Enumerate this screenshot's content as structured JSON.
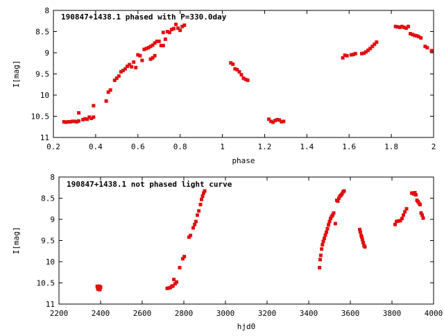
{
  "chart_data": [
    {
      "type": "scatter",
      "title": "190847+1438.1 phased with P=330.0day",
      "xlabel": "phase",
      "ylabel": "I[mag]",
      "xlim": [
        0.2,
        2.0
      ],
      "ylim": [
        8,
        11
      ],
      "y_inverted": true,
      "xticks": [
        "0.2",
        "0.4",
        "0.6",
        "0.8",
        "1",
        "1.2",
        "1.4",
        "1.6",
        "1.8",
        "2"
      ],
      "xtick_values": [
        0.2,
        0.4,
        0.6,
        0.8,
        1.0,
        1.2,
        1.4,
        1.6,
        1.8,
        2.0
      ],
      "yticks": [
        "8",
        "8.5",
        "9",
        "9.5",
        "10",
        "10.5",
        "11"
      ],
      "ytick_values": [
        8,
        8.5,
        9,
        9.5,
        10,
        10.5,
        11
      ],
      "marker_color": "#e01010",
      "points": [
        [
          0.25,
          10.63
        ],
        [
          0.26,
          10.64
        ],
        [
          0.27,
          10.63
        ],
        [
          0.28,
          10.63
        ],
        [
          0.29,
          10.62
        ],
        [
          0.3,
          10.62
        ],
        [
          0.31,
          10.63
        ],
        [
          0.32,
          10.61
        ],
        [
          0.32,
          10.42
        ],
        [
          0.34,
          10.58
        ],
        [
          0.35,
          10.56
        ],
        [
          0.36,
          10.57
        ],
        [
          0.37,
          10.52
        ],
        [
          0.38,
          10.55
        ],
        [
          0.39,
          10.52
        ],
        [
          0.39,
          10.25
        ],
        [
          0.45,
          10.14
        ],
        [
          0.46,
          9.93
        ],
        [
          0.47,
          9.88
        ],
        [
          0.49,
          9.65
        ],
        [
          0.5,
          9.6
        ],
        [
          0.51,
          9.55
        ],
        [
          0.52,
          9.45
        ],
        [
          0.53,
          9.42
        ],
        [
          0.54,
          9.38
        ],
        [
          0.55,
          9.32
        ],
        [
          0.56,
          9.28
        ],
        [
          0.57,
          9.33
        ],
        [
          0.58,
          9.22
        ],
        [
          0.59,
          9.35
        ],
        [
          0.6,
          9.05
        ],
        [
          0.61,
          9.07
        ],
        [
          0.62,
          9.18
        ],
        [
          0.63,
          8.92
        ],
        [
          0.64,
          8.9
        ],
        [
          0.65,
          8.88
        ],
        [
          0.66,
          8.85
        ],
        [
          0.66,
          9.15
        ],
        [
          0.67,
          8.82
        ],
        [
          0.67,
          9.12
        ],
        [
          0.68,
          8.77
        ],
        [
          0.68,
          9.07
        ],
        [
          0.69,
          8.73
        ],
        [
          0.7,
          8.73
        ],
        [
          0.71,
          8.83
        ],
        [
          0.72,
          8.83
        ],
        [
          0.72,
          8.52
        ],
        [
          0.73,
          8.68
        ],
        [
          0.74,
          8.5
        ],
        [
          0.75,
          8.52
        ],
        [
          0.76,
          8.45
        ],
        [
          0.77,
          8.43
        ],
        [
          0.78,
          8.33
        ],
        [
          0.79,
          8.42
        ],
        [
          0.8,
          8.47
        ],
        [
          0.81,
          8.38
        ],
        [
          0.82,
          8.35
        ],
        [
          1.04,
          9.24
        ],
        [
          1.05,
          9.27
        ],
        [
          1.06,
          9.38
        ],
        [
          1.07,
          9.4
        ],
        [
          1.08,
          9.45
        ],
        [
          1.09,
          9.52
        ],
        [
          1.1,
          9.6
        ],
        [
          1.11,
          9.63
        ],
        [
          1.12,
          9.65
        ],
        [
          1.22,
          10.57
        ],
        [
          1.23,
          10.62
        ],
        [
          1.24,
          10.64
        ],
        [
          1.25,
          10.6
        ],
        [
          1.26,
          10.58
        ],
        [
          1.27,
          10.59
        ],
        [
          1.28,
          10.63
        ],
        [
          1.29,
          10.62
        ],
        [
          1.57,
          9.12
        ],
        [
          1.58,
          9.06
        ],
        [
          1.59,
          9.07
        ],
        [
          1.61,
          9.05
        ],
        [
          1.62,
          9.04
        ],
        [
          1.63,
          9.02
        ],
        [
          1.66,
          9.02
        ],
        [
          1.67,
          9.01
        ],
        [
          1.68,
          8.98
        ],
        [
          1.69,
          8.94
        ],
        [
          1.7,
          8.9
        ],
        [
          1.71,
          8.85
        ],
        [
          1.72,
          8.8
        ],
        [
          1.73,
          8.75
        ],
        [
          1.82,
          8.38
        ],
        [
          1.83,
          8.39
        ],
        [
          1.84,
          8.4
        ],
        [
          1.85,
          8.38
        ],
        [
          1.86,
          8.4
        ],
        [
          1.87,
          8.42
        ],
        [
          1.88,
          8.38
        ],
        [
          1.89,
          8.55
        ],
        [
          1.9,
          8.57
        ],
        [
          1.91,
          8.59
        ],
        [
          1.92,
          8.6
        ],
        [
          1.93,
          8.62
        ],
        [
          1.94,
          8.65
        ],
        [
          1.96,
          8.85
        ],
        [
          1.97,
          8.88
        ],
        [
          1.99,
          8.95
        ]
      ]
    },
    {
      "type": "scatter",
      "title": "190847+1438.1 not phased light curve",
      "xlabel": "hjd0",
      "ylabel": "I[mag]",
      "xlim": [
        2200,
        4000
      ],
      "ylim": [
        8,
        11
      ],
      "y_inverted": true,
      "xticks": [
        "2200",
        "2400",
        "2600",
        "2800",
        "3000",
        "3200",
        "3400",
        "3600",
        "3800",
        "4000"
      ],
      "xtick_values": [
        2200,
        2400,
        2600,
        2800,
        3000,
        3200,
        3400,
        3600,
        3800,
        4000
      ],
      "yticks": [
        "8",
        "8.5",
        "9",
        "9.5",
        "10",
        "10.5",
        "11"
      ],
      "ytick_values": [
        8,
        8.5,
        9,
        9.5,
        10,
        10.5,
        11
      ],
      "marker_color": "#e01010",
      "points": [
        [
          2384,
          10.58
        ],
        [
          2386,
          10.62
        ],
        [
          2388,
          10.65
        ],
        [
          2390,
          10.6
        ],
        [
          2392,
          10.63
        ],
        [
          2394,
          10.58
        ],
        [
          2396,
          10.66
        ],
        [
          2398,
          10.62
        ],
        [
          2400,
          10.6
        ],
        [
          2720,
          10.63
        ],
        [
          2728,
          10.62
        ],
        [
          2735,
          10.61
        ],
        [
          2742,
          10.58
        ],
        [
          2748,
          10.57
        ],
        [
          2752,
          10.42
        ],
        [
          2758,
          10.52
        ],
        [
          2765,
          10.48
        ],
        [
          2780,
          10.14
        ],
        [
          2795,
          9.93
        ],
        [
          2802,
          9.88
        ],
        [
          2825,
          9.42
        ],
        [
          2832,
          9.38
        ],
        [
          2845,
          9.2
        ],
        [
          2852,
          9.12
        ],
        [
          2858,
          9.05
        ],
        [
          2865,
          8.9
        ],
        [
          2872,
          8.8
        ],
        [
          2880,
          8.65
        ],
        [
          2885,
          8.53
        ],
        [
          2890,
          8.45
        ],
        [
          2895,
          8.38
        ],
        [
          2900,
          8.33
        ],
        [
          3452,
          10.14
        ],
        [
          3455,
          9.95
        ],
        [
          3458,
          9.85
        ],
        [
          3462,
          9.7
        ],
        [
          3466,
          9.6
        ],
        [
          3470,
          9.52
        ],
        [
          3475,
          9.45
        ],
        [
          3480,
          9.37
        ],
        [
          3485,
          9.3
        ],
        [
          3490,
          9.22
        ],
        [
          3495,
          9.13
        ],
        [
          3500,
          9.05
        ],
        [
          3505,
          8.98
        ],
        [
          3510,
          8.93
        ],
        [
          3515,
          8.9
        ],
        [
          3520,
          8.85
        ],
        [
          3528,
          9.1
        ],
        [
          3535,
          8.55
        ],
        [
          3540,
          8.57
        ],
        [
          3545,
          8.5
        ],
        [
          3550,
          8.45
        ],
        [
          3555,
          8.43
        ],
        [
          3560,
          8.4
        ],
        [
          3565,
          8.35
        ],
        [
          3570,
          8.33
        ],
        [
          3645,
          9.24
        ],
        [
          3648,
          9.3
        ],
        [
          3652,
          9.38
        ],
        [
          3655,
          9.42
        ],
        [
          3658,
          9.48
        ],
        [
          3662,
          9.55
        ],
        [
          3666,
          9.62
        ],
        [
          3670,
          9.65
        ],
        [
          3815,
          9.12
        ],
        [
          3822,
          9.05
        ],
        [
          3830,
          9.04
        ],
        [
          3840,
          9.03
        ],
        [
          3848,
          8.98
        ],
        [
          3855,
          8.9
        ],
        [
          3862,
          8.82
        ],
        [
          3870,
          8.75
        ],
        [
          3895,
          8.38
        ],
        [
          3900,
          8.38
        ],
        [
          3905,
          8.4
        ],
        [
          3910,
          8.37
        ],
        [
          3915,
          8.42
        ],
        [
          3920,
          8.55
        ],
        [
          3925,
          8.58
        ],
        [
          3930,
          8.62
        ],
        [
          3935,
          8.65
        ],
        [
          3940,
          8.85
        ],
        [
          3945,
          8.9
        ],
        [
          3950,
          8.97
        ]
      ]
    }
  ]
}
